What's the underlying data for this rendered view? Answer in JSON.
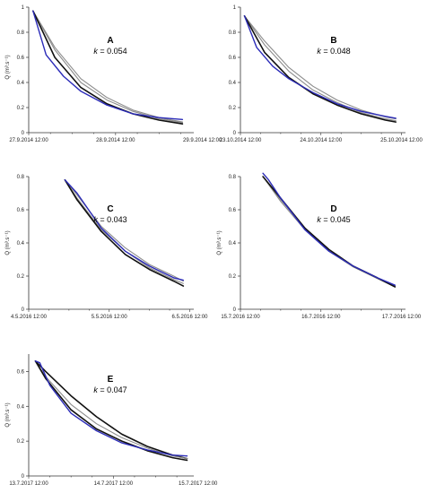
{
  "colors": {
    "gray": "#8c8c8c",
    "black": "#111111",
    "blue": "#2b2bb8",
    "axis": "#333333"
  },
  "chart_data": [
    {
      "type": "line",
      "letter": "A",
      "k_text": "= 0.054",
      "ylabel": "Q (m³.s⁻¹)",
      "xticks": [
        "27.9.2014 12:00",
        "28.9.2014 12:00",
        "29.9.2014 12:00"
      ],
      "yticks": [
        "0",
        "0.2",
        "0.4",
        "0.6",
        "0.8",
        "1"
      ],
      "ylim": [
        0,
        1
      ],
      "xlim": [
        0,
        1.9
      ],
      "series": [
        {
          "color": "gray",
          "x": [
            0.05,
            0.3,
            0.6,
            0.9,
            1.2,
            1.5,
            1.77
          ],
          "y": [
            0.97,
            0.68,
            0.43,
            0.28,
            0.18,
            0.12,
            0.085
          ]
        },
        {
          "color": "gray",
          "x": [
            0.05,
            0.3,
            0.6,
            0.9,
            1.2,
            1.5,
            1.77
          ],
          "y": [
            0.97,
            0.66,
            0.4,
            0.26,
            0.17,
            0.11,
            0.08
          ]
        },
        {
          "color": "black",
          "x": [
            0.05,
            0.3,
            0.6,
            0.9,
            1.2,
            1.5,
            1.77
          ],
          "y": [
            0.97,
            0.6,
            0.36,
            0.23,
            0.15,
            0.1,
            0.07
          ]
        },
        {
          "color": "blue",
          "x": [
            0.05,
            0.2,
            0.4,
            0.6,
            0.9,
            1.2,
            1.5,
            1.77
          ],
          "y": [
            0.97,
            0.62,
            0.45,
            0.33,
            0.22,
            0.15,
            0.12,
            0.105
          ]
        }
      ]
    },
    {
      "type": "line",
      "letter": "B",
      "k_text": "= 0.048",
      "ylabel": "",
      "xticks": [
        "23.10.2014 12:00",
        "24.10.2014 12:00",
        "25.10.2014 12:00"
      ],
      "yticks": [
        "0",
        "0.2",
        "0.4",
        "0.6",
        "0.8",
        "1"
      ],
      "ylim": [
        0,
        1
      ],
      "xlim": [
        0,
        2.05
      ],
      "series": [
        {
          "color": "gray",
          "x": [
            0.05,
            0.3,
            0.6,
            0.9,
            1.2,
            1.5,
            1.8,
            1.93
          ],
          "y": [
            0.93,
            0.73,
            0.52,
            0.37,
            0.26,
            0.18,
            0.125,
            0.11
          ]
        },
        {
          "color": "gray",
          "x": [
            0.05,
            0.3,
            0.6,
            0.9,
            1.2,
            1.5,
            1.8,
            1.93
          ],
          "y": [
            0.93,
            0.7,
            0.49,
            0.34,
            0.24,
            0.16,
            0.11,
            0.095
          ]
        },
        {
          "color": "black",
          "x": [
            0.05,
            0.3,
            0.6,
            0.9,
            1.2,
            1.5,
            1.8,
            1.93
          ],
          "y": [
            0.93,
            0.64,
            0.44,
            0.31,
            0.22,
            0.15,
            0.1,
            0.085
          ]
        },
        {
          "color": "blue",
          "x": [
            0.05,
            0.2,
            0.4,
            0.6,
            0.9,
            1.2,
            1.5,
            1.8,
            1.93
          ],
          "y": [
            0.93,
            0.68,
            0.53,
            0.43,
            0.32,
            0.23,
            0.17,
            0.13,
            0.115
          ]
        }
      ]
    },
    {
      "type": "line",
      "letter": "C",
      "k_text": "= 0.043",
      "ylabel": "Q (m³.s⁻¹)",
      "xticks": [
        "4.5.2016 12:00",
        "5.5.2016 12:00",
        "6.5.2016 12:00"
      ],
      "yticks": [
        "0",
        "0.2",
        "0.4",
        "0.6",
        "0.8"
      ],
      "ylim": [
        0,
        0.8
      ],
      "xlim": [
        0,
        2.05
      ],
      "series": [
        {
          "color": "gray",
          "x": [
            0.45,
            0.6,
            0.9,
            1.2,
            1.5,
            1.8,
            1.92
          ],
          "y": [
            0.78,
            0.69,
            0.5,
            0.37,
            0.27,
            0.2,
            0.17
          ]
        },
        {
          "color": "gray",
          "x": [
            0.45,
            0.6,
            0.9,
            1.2,
            1.5,
            1.8,
            1.92
          ],
          "y": [
            0.78,
            0.67,
            0.48,
            0.35,
            0.25,
            0.18,
            0.155
          ]
        },
        {
          "color": "black",
          "x": [
            0.45,
            0.6,
            0.9,
            1.2,
            1.5,
            1.8,
            1.92
          ],
          "y": [
            0.78,
            0.66,
            0.47,
            0.33,
            0.24,
            0.17,
            0.14
          ]
        },
        {
          "color": "blue",
          "x": [
            0.45,
            0.6,
            0.9,
            1.2,
            1.5,
            1.8,
            1.92
          ],
          "y": [
            0.78,
            0.7,
            0.49,
            0.35,
            0.26,
            0.19,
            0.175
          ]
        }
      ]
    },
    {
      "type": "line",
      "letter": "D",
      "k_text": "= 0.045",
      "ylabel": "Q (m³.s⁻¹)",
      "xticks": [
        "15.7.2016 12:00",
        "16.7.2016 12:00",
        "17.7.2016 12:00"
      ],
      "yticks": [
        "0",
        "0.2",
        "0.4",
        "0.6",
        "0.8"
      ],
      "ylim": [
        0,
        0.8
      ],
      "xlim": [
        0,
        2.05
      ],
      "series": [
        {
          "color": "gray",
          "x": [
            0.28,
            0.5,
            0.8,
            1.1,
            1.4,
            1.7,
            1.92
          ],
          "y": [
            0.8,
            0.66,
            0.49,
            0.36,
            0.26,
            0.19,
            0.14
          ]
        },
        {
          "color": "gray",
          "x": [
            0.28,
            0.5,
            0.8,
            1.1,
            1.4,
            1.7,
            1.92
          ],
          "y": [
            0.8,
            0.65,
            0.48,
            0.35,
            0.255,
            0.185,
            0.135
          ]
        },
        {
          "color": "black",
          "x": [
            0.28,
            0.5,
            0.8,
            1.1,
            1.4,
            1.7,
            1.92
          ],
          "y": [
            0.8,
            0.67,
            0.49,
            0.36,
            0.26,
            0.19,
            0.135
          ]
        },
        {
          "color": "blue",
          "x": [
            0.28,
            0.35,
            0.5,
            0.8,
            1.1,
            1.4,
            1.7,
            1.92
          ],
          "y": [
            0.82,
            0.78,
            0.67,
            0.48,
            0.35,
            0.26,
            0.19,
            0.145
          ]
        }
      ]
    },
    {
      "type": "line",
      "letter": "E",
      "k_text": "= 0.047",
      "ylabel": "Q (m³.s⁻¹)",
      "xticks": [
        "13.7.2017 12:00",
        "14.7.2017 12:00",
        "15.7.2017 12:00"
      ],
      "yticks": [
        "0",
        "0.2",
        "0.4",
        "0.6"
      ],
      "ylim": [
        0,
        0.7
      ],
      "xlim": [
        0,
        1.95
      ],
      "series": [
        {
          "color": "black",
          "x": [
            0.08,
            0.2,
            0.5,
            0.8,
            1.1,
            1.4,
            1.7,
            1.87
          ],
          "y": [
            0.66,
            0.6,
            0.46,
            0.34,
            0.24,
            0.17,
            0.12,
            0.1
          ]
        },
        {
          "color": "gray",
          "x": [
            0.08,
            0.2,
            0.5,
            0.8,
            1.1,
            1.4,
            1.7,
            1.87
          ],
          "y": [
            0.66,
            0.57,
            0.41,
            0.3,
            0.22,
            0.16,
            0.115,
            0.1
          ]
        },
        {
          "color": "black",
          "x": [
            0.08,
            0.2,
            0.5,
            0.8,
            1.1,
            1.4,
            1.7,
            1.87
          ],
          "y": [
            0.66,
            0.56,
            0.38,
            0.27,
            0.2,
            0.145,
            0.105,
            0.09
          ]
        },
        {
          "color": "blue",
          "x": [
            0.08,
            0.13,
            0.25,
            0.5,
            0.8,
            1.1,
            1.4,
            1.7,
            1.87
          ],
          "y": [
            0.66,
            0.65,
            0.52,
            0.36,
            0.26,
            0.19,
            0.15,
            0.12,
            0.115
          ]
        }
      ]
    }
  ]
}
